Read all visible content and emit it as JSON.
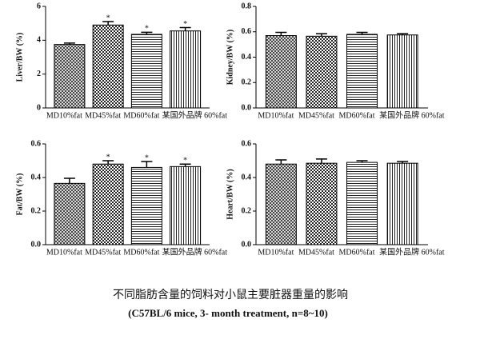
{
  "chart_data": [
    {
      "type": "bar",
      "ylabel": "Liver/BW (%)",
      "categories": [
        "MD10%fat",
        "MD45%fat",
        "MD60%fat",
        "某国外品牌 60%fat"
      ],
      "values": [
        3.75,
        4.9,
        4.35,
        4.55
      ],
      "errors": [
        0.08,
        0.2,
        0.12,
        0.2
      ],
      "annotations": [
        null,
        "*",
        "*",
        "*"
      ],
      "patterns": [
        "crosshatch",
        "checker",
        "horizontal",
        "vertical"
      ],
      "ylim": [
        0,
        6
      ],
      "yticks": [
        0,
        2,
        4,
        6
      ]
    },
    {
      "type": "bar",
      "ylabel": "Kidney/BW (%)",
      "categories": [
        "MD10%fat",
        "MD45%fat",
        "MD60%fat",
        "某国外品牌 60%fat"
      ],
      "values": [
        0.57,
        0.565,
        0.58,
        0.575
      ],
      "errors": [
        0.025,
        0.02,
        0.015,
        0.01
      ],
      "annotations": [
        null,
        null,
        null,
        null
      ],
      "patterns": [
        "crosshatch",
        "checker",
        "horizontal",
        "vertical"
      ],
      "ylim": [
        0,
        0.8
      ],
      "yticks": [
        {
          "value": 0,
          "label": "0.0"
        },
        0.2,
        0.4,
        0.6,
        0.8
      ]
    },
    {
      "type": "bar",
      "ylabel": "Fat/BW (%)",
      "categories": [
        "MD10%fat",
        "MD45%fat",
        "MD60%fat",
        "某国外品牌 60%fat"
      ],
      "values": [
        0.365,
        0.48,
        0.46,
        0.465
      ],
      "errors": [
        0.03,
        0.02,
        0.035,
        0.015
      ],
      "annotations": [
        null,
        "*",
        "*",
        "*"
      ],
      "patterns": [
        "crosshatch",
        "checker",
        "horizontal",
        "vertical"
      ],
      "ylim": [
        0,
        0.6
      ],
      "yticks": [
        {
          "value": 0,
          "label": "0.0"
        },
        0.2,
        0.4,
        0.6
      ]
    },
    {
      "type": "bar",
      "ylabel": "Heart/BW (%)",
      "categories": [
        "MD10%fat",
        "MD45%fat",
        "MD60%fat",
        "某国外品牌 60%fat"
      ],
      "values": [
        0.48,
        0.485,
        0.49,
        0.485
      ],
      "errors": [
        0.025,
        0.025,
        0.01,
        0.01
      ],
      "annotations": [
        null,
        null,
        null,
        null
      ],
      "patterns": [
        "crosshatch",
        "checker",
        "horizontal",
        "vertical"
      ],
      "ylim": [
        0,
        0.6
      ],
      "yticks": [
        {
          "value": 0,
          "label": "0.0"
        },
        0.2,
        0.4,
        0.6
      ]
    }
  ],
  "caption": [
    "不同脂肪含量的饲料对小鼠主要脏器重量的影响",
    "(C57BL/6  mice, 3- month treatment, n=8~10)"
  ]
}
